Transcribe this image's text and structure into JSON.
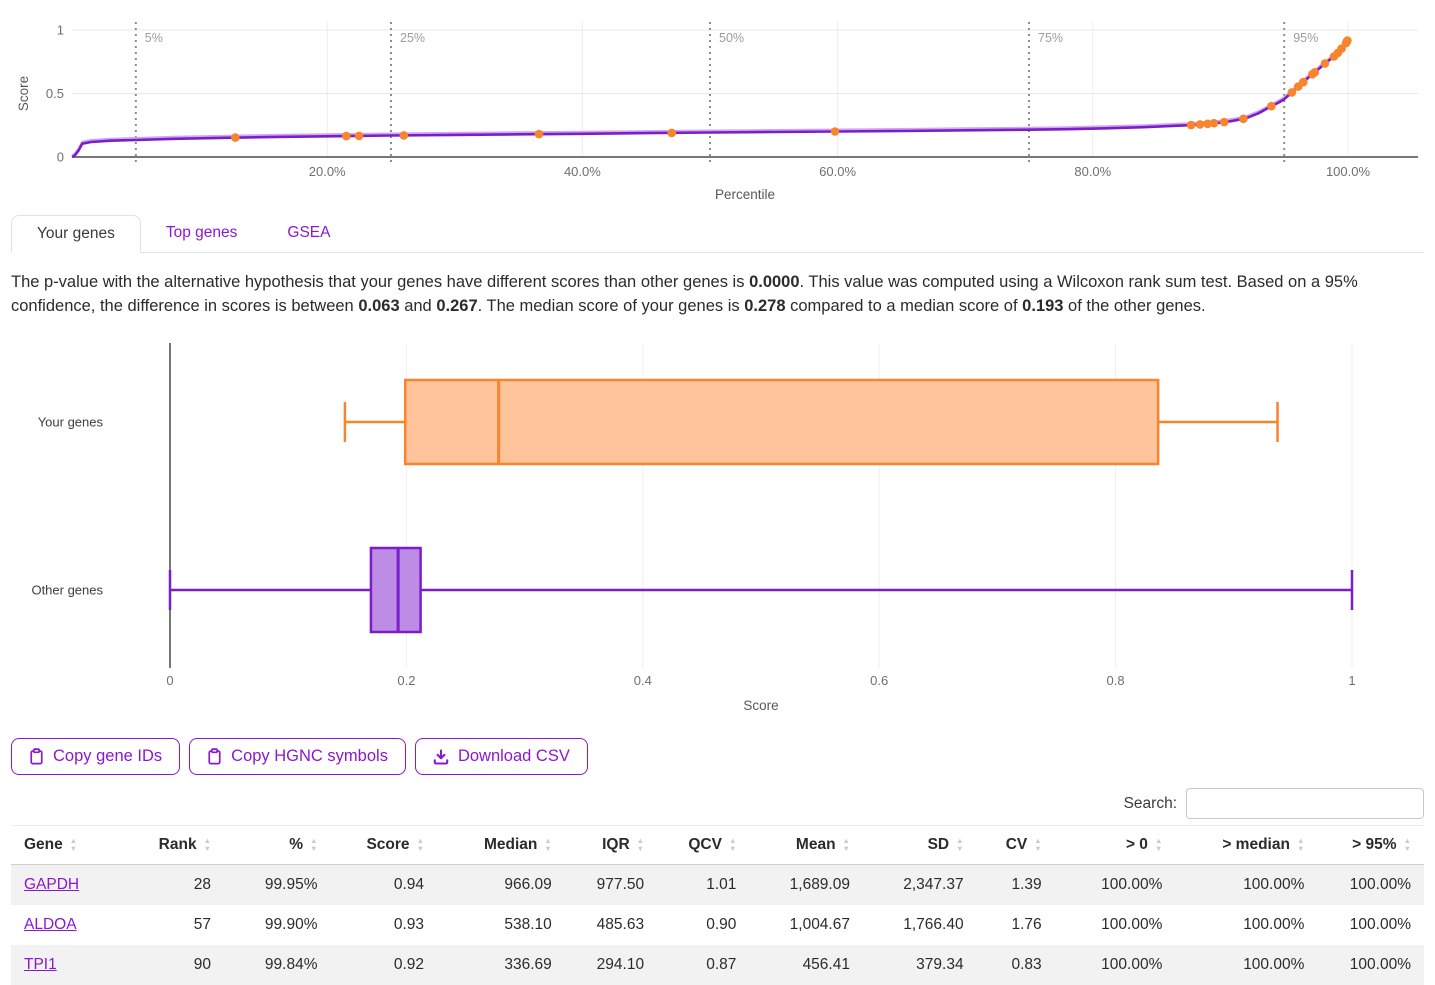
{
  "tabs": [
    {
      "label": "Your genes",
      "active": true
    },
    {
      "label": "Top genes",
      "active": false
    },
    {
      "label": "GSEA",
      "active": false
    }
  ],
  "stats": {
    "segments": [
      {
        "text": "The p-value with the alternative hypothesis that your genes have different scores than other genes is ",
        "bold": false
      },
      {
        "text": "0.0000",
        "bold": true
      },
      {
        "text": ". This value was computed using a Wilcoxon rank sum test. Based on a 95% confidence, the difference in scores is between ",
        "bold": false
      },
      {
        "text": "0.063",
        "bold": true
      },
      {
        "text": " and ",
        "bold": false
      },
      {
        "text": "0.267",
        "bold": true
      },
      {
        "text": ". The median score of your genes is ",
        "bold": false
      },
      {
        "text": "0.278",
        "bold": true
      },
      {
        "text": " compared to a median score of ",
        "bold": false
      },
      {
        "text": "0.193",
        "bold": true
      },
      {
        "text": " of the other genes.",
        "bold": false
      }
    ]
  },
  "toolbar": {
    "buttons": [
      {
        "label": "Copy gene IDs",
        "icon": "clipboard"
      },
      {
        "label": "Copy HGNC symbols",
        "icon": "clipboard"
      },
      {
        "label": "Download CSV",
        "icon": "download"
      }
    ]
  },
  "search": {
    "label": "Search:",
    "value": "",
    "placeholder": ""
  },
  "table": {
    "columns": [
      "Gene",
      "Rank",
      "%",
      "Score",
      "Median",
      "IQR",
      "QCV",
      "Mean",
      "SD",
      "CV",
      "> 0",
      "> median",
      "> 95%"
    ],
    "rows": [
      [
        "GAPDH",
        "28",
        "99.95%",
        "0.94",
        "966.09",
        "977.50",
        "1.01",
        "1,689.09",
        "2,347.37",
        "1.39",
        "100.00%",
        "100.00%",
        "100.00%"
      ],
      [
        "ALDOA",
        "57",
        "99.90%",
        "0.93",
        "538.10",
        "485.63",
        "0.90",
        "1,004.67",
        "1,766.40",
        "1.76",
        "100.00%",
        "100.00%",
        "100.00%"
      ],
      [
        "TPI1",
        "90",
        "99.84%",
        "0.92",
        "336.69",
        "294.10",
        "0.87",
        "456.41",
        "379.34",
        "0.83",
        "100.00%",
        "100.00%",
        "100.00%"
      ]
    ]
  },
  "colors": {
    "purple": "#7d1dc9",
    "purple_light": "#cfa8f2",
    "purple_fill": "#bd8ce4",
    "orange": "#f8842c",
    "orange_fill": "#ffc49c",
    "link": "#8a18ce",
    "marker": "#f8842c",
    "grid": "#ececec",
    "axis": "#4a4a4a",
    "stripe": "#f2f2f2"
  },
  "chart_data": [
    {
      "type": "line",
      "title": "Score vs percentile curve with your genes highlighted",
      "xlabel": "Percentile",
      "ylabel": "Score",
      "x_ticks": [
        "20.0%",
        "40.0%",
        "60.0%",
        "80.0%",
        "100.0%"
      ],
      "x_tick_values": [
        20,
        40,
        60,
        80,
        100
      ],
      "y_ticks": [
        0,
        0.5,
        1
      ],
      "xlim": [
        0,
        105.5
      ],
      "ylim": [
        0,
        1
      ],
      "grid": true,
      "reference_lines": [
        {
          "value": 5,
          "label": "5%"
        },
        {
          "value": 25,
          "label": "25%"
        },
        {
          "value": 50,
          "label": "50%"
        },
        {
          "value": 75,
          "label": "75%"
        },
        {
          "value": 95,
          "label": "95%"
        }
      ],
      "series": [
        {
          "name": "all-genes-score-curve",
          "points": [
            [
              0,
              0
            ],
            [
              0.2,
              0.01
            ],
            [
              0.5,
              0.05
            ],
            [
              0.8,
              0.105
            ],
            [
              1.5,
              0.118
            ],
            [
              3,
              0.128
            ],
            [
              5,
              0.134
            ],
            [
              8,
              0.143
            ],
            [
              12,
              0.151
            ],
            [
              16,
              0.158
            ],
            [
              20,
              0.163
            ],
            [
              25,
              0.169
            ],
            [
              30,
              0.174
            ],
            [
              35,
              0.179
            ],
            [
              40,
              0.183
            ],
            [
              45,
              0.188
            ],
            [
              50,
              0.193
            ],
            [
              55,
              0.197
            ],
            [
              60,
              0.201
            ],
            [
              65,
              0.205
            ],
            [
              70,
              0.21
            ],
            [
              75,
              0.215
            ],
            [
              78,
              0.219
            ],
            [
              81,
              0.226
            ],
            [
              84,
              0.235
            ],
            [
              86,
              0.243
            ],
            [
              88,
              0.253
            ],
            [
              90,
              0.27
            ],
            [
              91,
              0.285
            ],
            [
              92,
              0.305
            ],
            [
              93,
              0.345
            ],
            [
              94,
              0.4
            ],
            [
              94.5,
              0.425
            ],
            [
              95,
              0.455
            ],
            [
              95.5,
              0.5
            ],
            [
              96,
              0.545
            ],
            [
              96.5,
              0.59
            ],
            [
              97,
              0.635
            ],
            [
              97.5,
              0.675
            ],
            [
              98,
              0.72
            ],
            [
              98.5,
              0.76
            ],
            [
              99,
              0.8
            ],
            [
              99.3,
              0.83
            ],
            [
              99.6,
              0.865
            ],
            [
              99.8,
              0.89
            ],
            [
              100,
              0.925
            ]
          ]
        }
      ],
      "markers": {
        "name": "your-genes",
        "percentiles": [
          12.8,
          21.5,
          22.5,
          26,
          36.6,
          47,
          59.8,
          87.7,
          88.4,
          89,
          89.5,
          90.3,
          91.8,
          94,
          95.6,
          96.1,
          96.5,
          97.2,
          97.4,
          98.2,
          98.9,
          99.2,
          99.5,
          99.84,
          99.9,
          99.95
        ]
      }
    },
    {
      "type": "boxplot",
      "orientation": "horizontal",
      "xlabel": "Score",
      "x_ticks": [
        0,
        0.2,
        0.4,
        0.6,
        0.8,
        1
      ],
      "xlim": [
        0,
        1.06
      ],
      "groups": [
        {
          "label": "Your genes",
          "whisker_low": 0.148,
          "q1": 0.199,
          "median": 0.278,
          "q3": 0.836,
          "whisker_high": 0.937,
          "color": "#f8842c",
          "fill": "#ffc49c"
        },
        {
          "label": "Other genes",
          "whisker_low": 0,
          "q1": 0.17,
          "median": 0.193,
          "q3": 0.212,
          "whisker_high": 1.0,
          "color": "#7d1dc9",
          "fill": "#bd8ce4"
        }
      ]
    }
  ]
}
